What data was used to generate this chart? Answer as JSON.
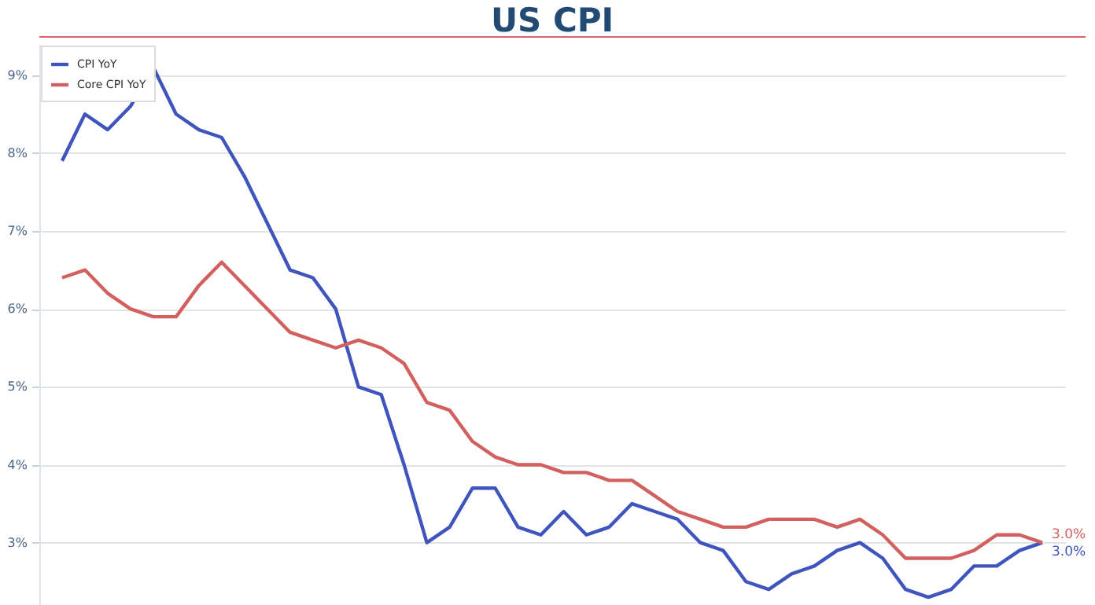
{
  "chart_data": {
    "type": "line",
    "title": "US CPI",
    "categories": [
      null,
      null,
      null,
      null,
      null,
      null,
      null,
      null,
      null,
      null,
      null,
      null,
      null,
      null,
      null,
      null,
      null,
      null,
      null,
      null,
      null,
      null,
      null,
      null,
      null,
      null,
      null,
      null,
      null,
      null,
      null,
      null,
      null,
      null,
      null,
      null,
      null,
      null,
      null,
      null,
      null,
      null,
      null,
      null
    ],
    "series": [
      {
        "name": "CPI YoY",
        "color": "#3f55bd",
        "values": [
          7.9,
          8.5,
          8.3,
          8.6,
          9.1,
          8.5,
          8.3,
          8.2,
          7.7,
          7.1,
          6.5,
          6.4,
          6.0,
          5.0,
          4.9,
          4.0,
          3.0,
          3.2,
          3.7,
          3.7,
          3.2,
          3.1,
          3.4,
          3.1,
          3.2,
          3.5,
          3.4,
          3.3,
          3.0,
          2.9,
          2.5,
          2.4,
          2.6,
          2.7,
          2.9,
          3.0,
          2.8,
          2.4,
          2.3,
          2.4,
          2.7,
          2.7,
          2.9,
          3.0
        ],
        "value_labels": [
          null,
          null,
          null,
          null,
          null,
          null,
          null,
          null,
          null,
          null,
          null,
          null,
          null,
          null,
          null,
          null,
          null,
          null,
          null,
          null,
          null,
          null,
          null,
          null,
          null,
          null,
          null,
          null,
          null,
          null,
          null,
          null,
          null,
          null,
          null,
          null,
          null,
          null,
          null,
          null,
          null,
          null,
          null,
          "3.0%"
        ]
      },
      {
        "name": "Core CPI YoY",
        "color": "#d2605e",
        "values": [
          6.4,
          6.5,
          6.2,
          6.0,
          5.9,
          5.9,
          6.3,
          6.6,
          6.3,
          6.0,
          5.7,
          5.6,
          5.5,
          5.6,
          5.5,
          5.3,
          4.8,
          4.7,
          4.3,
          4.1,
          4.0,
          4.0,
          3.9,
          3.9,
          3.8,
          3.8,
          3.6,
          3.4,
          3.3,
          3.2,
          3.2,
          3.3,
          3.3,
          3.3,
          3.2,
          3.3,
          3.1,
          2.8,
          2.8,
          2.8,
          2.9,
          3.1,
          3.1,
          3.0
        ],
        "value_labels": [
          null,
          null,
          null,
          null,
          null,
          null,
          null,
          null,
          null,
          null,
          null,
          null,
          null,
          null,
          null,
          null,
          null,
          null,
          null,
          null,
          null,
          null,
          null,
          null,
          null,
          null,
          null,
          null,
          null,
          null,
          null,
          null,
          null,
          null,
          null,
          null,
          null,
          null,
          null,
          null,
          null,
          null,
          null,
          "3.0%"
        ]
      }
    ],
    "ylim": [
      2.2,
      9.4
    ],
    "yticks": [
      {
        "value": 3,
        "label": "3%"
      },
      {
        "value": 4,
        "label": "4%"
      },
      {
        "value": 5,
        "label": "5%"
      },
      {
        "value": 6,
        "label": "6%"
      },
      {
        "value": 7,
        "label": "7%"
      },
      {
        "value": 8,
        "label": "8%"
      },
      {
        "value": 9,
        "label": "9%"
      }
    ],
    "grid": "y",
    "legend": "top left",
    "tick_labels": "y",
    "line_style": "solid"
  }
}
